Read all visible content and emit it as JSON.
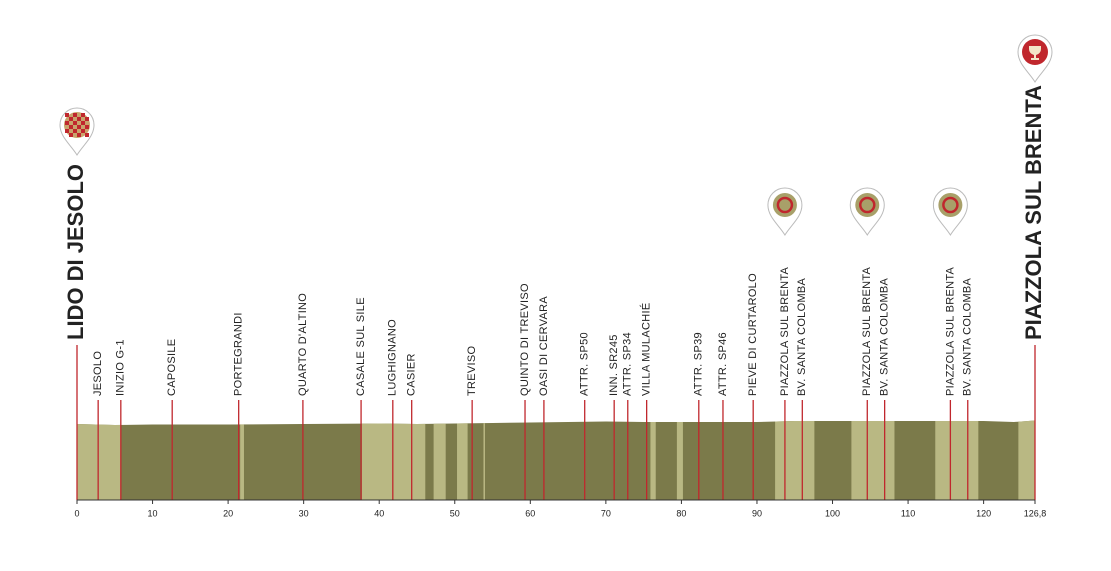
{
  "chart_data": {
    "type": "profile",
    "start": {
      "name": "LIDO DI JESOLO",
      "km": 0
    },
    "finish": {
      "name": "PIAZZOLA SUL BRENTA",
      "km": 126.8
    },
    "places": [
      {
        "name": "JESOLO",
        "km": 2.8
      },
      {
        "name": "INIZIO G-1",
        "km": 5.8
      },
      {
        "name": "CAPOSILE",
        "km": 12.6
      },
      {
        "name": "PORTEGRANDI",
        "km": 21.4
      },
      {
        "name": "QUARTO D'ALTINO",
        "km": 29.9
      },
      {
        "name": "CASALE SUL SILE",
        "km": 37.6
      },
      {
        "name": "LUGHIGNANO",
        "km": 41.8
      },
      {
        "name": "CASIER",
        "km": 44.3
      },
      {
        "name": "TREVISO",
        "km": 52.3
      },
      {
        "name": "QUINTO DI TREVISO",
        "km": 59.3
      },
      {
        "name": "OASI DI CERVARA",
        "km": 61.8
      },
      {
        "name": "ATTR. SP50",
        "km": 67.2
      },
      {
        "name": "INN. SR245",
        "km": 71.1
      },
      {
        "name": "ATTR. SP34",
        "km": 72.9
      },
      {
        "name": "VILLA MULACHIÉ",
        "km": 75.4
      },
      {
        "name": "ATTR. SP39",
        "km": 82.3
      },
      {
        "name": "ATTR. SP46",
        "km": 85.5
      },
      {
        "name": "PIEVE DI CURTAROLO",
        "km": 89.5
      },
      {
        "name": "PIAZZOLA SUL BRENTA",
        "km": 93.7,
        "sprint": true
      },
      {
        "name": "BV. SANTA COLOMBA",
        "km": 96.0
      },
      {
        "name": "PIAZZOLA SUL BRENTA",
        "km": 104.6,
        "sprint": true
      },
      {
        "name": "BV. SANTA COLOMBA",
        "km": 106.9
      },
      {
        "name": "PIAZZOLA SUL BRENTA",
        "km": 115.6,
        "sprint": true
      },
      {
        "name": "BV. SANTA COLOMBA",
        "km": 117.9
      }
    ],
    "x": [
      0,
      5,
      10,
      20,
      30,
      40,
      45,
      50,
      55,
      60,
      70,
      75,
      80,
      90,
      95,
      100,
      110,
      120,
      124,
      126.8
    ],
    "elevation": [
      1,
      0,
      0.5,
      0.5,
      1,
      1.5,
      1,
      1.5,
      2,
      2.5,
      3.5,
      3,
      3,
      3,
      4,
      4,
      4,
      4,
      3,
      4.5
    ],
    "ylim": [
      -75,
      25
    ],
    "xlim": [
      0,
      126.8
    ],
    "xticks": [
      0,
      10,
      20,
      30,
      40,
      50,
      60,
      70,
      80,
      90,
      100,
      110,
      120,
      {
        "value": 126.8,
        "label": "126,8"
      }
    ],
    "color": "#7b7a4a",
    "light_color": "#b9b883",
    "line_color": "#c0272d",
    "light_sections": [
      [
        0,
        5.8
      ],
      [
        21.6,
        22.1
      ],
      [
        37.7,
        46.1
      ],
      [
        47.2,
        48.8
      ],
      [
        50.3,
        51.7
      ],
      [
        53.8,
        54.0
      ],
      [
        75.9,
        76.6
      ],
      [
        79.4,
        80.2
      ],
      [
        92.4,
        97.6
      ],
      [
        102.5,
        108.2
      ],
      [
        113.6,
        119.3
      ],
      [
        124.6,
        126.8
      ]
    ]
  }
}
